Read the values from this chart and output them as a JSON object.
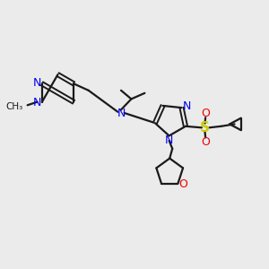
{
  "background_color": "#ebebeb",
  "figsize": [
    3.0,
    3.0
  ],
  "dpi": 100,
  "bond_color": "#1a1a1a",
  "nitrogen_color": "#0000ee",
  "oxygen_color": "#ee0000",
  "sulfur_color": "#cccc00",
  "line_width": 1.6,
  "font_size": 9.0,
  "xlim": [
    0,
    10
  ],
  "ylim": [
    0,
    10
  ]
}
